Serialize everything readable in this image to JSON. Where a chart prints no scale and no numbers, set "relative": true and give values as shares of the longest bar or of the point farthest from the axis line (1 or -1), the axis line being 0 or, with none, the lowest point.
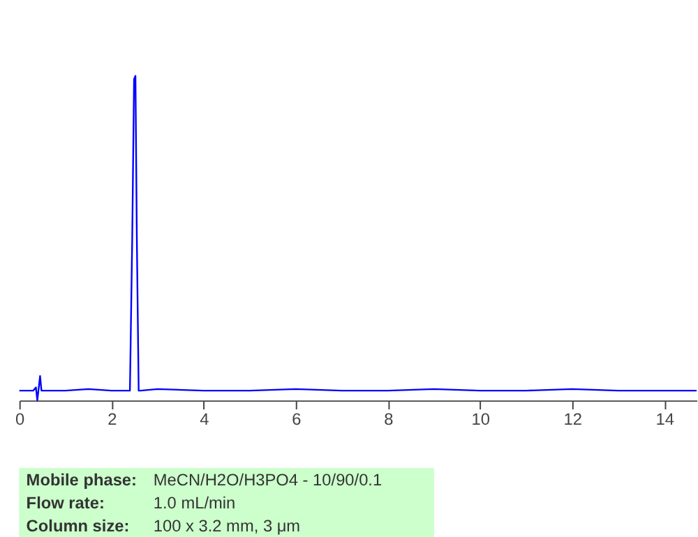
{
  "chart_data": {
    "type": "line",
    "relative": true,
    "x": [
      0.0,
      0.3,
      0.36,
      0.39,
      0.45,
      0.48,
      0.52,
      1.0,
      1.5,
      2.0,
      2.4,
      2.45,
      2.49,
      2.52,
      2.55,
      2.59,
      2.63,
      3.0,
      4.0,
      5.0,
      6.0,
      7.0,
      8.0,
      9.0,
      10.0,
      11.0,
      12.0,
      13.0,
      14.0,
      14.7
    ],
    "series": [
      {
        "color": "#0000ff",
        "values": [
          0.03,
          0.03,
          0.04,
          0.0,
          0.075,
          0.03,
          0.03,
          0.03,
          0.035,
          0.03,
          0.03,
          0.5,
          0.99,
          1.0,
          0.5,
          0.03,
          0.03,
          0.035,
          0.03,
          0.03,
          0.035,
          0.03,
          0.03,
          0.035,
          0.03,
          0.03,
          0.035,
          0.03,
          0.03,
          0.03
        ]
      }
    ],
    "xlim": [
      0,
      14.7
    ],
    "xticks": [
      0,
      2,
      4,
      6,
      8,
      10,
      12,
      14
    ],
    "grid": false,
    "tick_labels": "x",
    "annotations": [
      "Mobile phase:",
      "MeCN/H2O/H3PO4 - 10/90/0.1",
      "Flow rate:",
      "1.0 mL/min",
      "Column size:",
      "100 x 3.2 mm, 3 μm"
    ]
  }
}
